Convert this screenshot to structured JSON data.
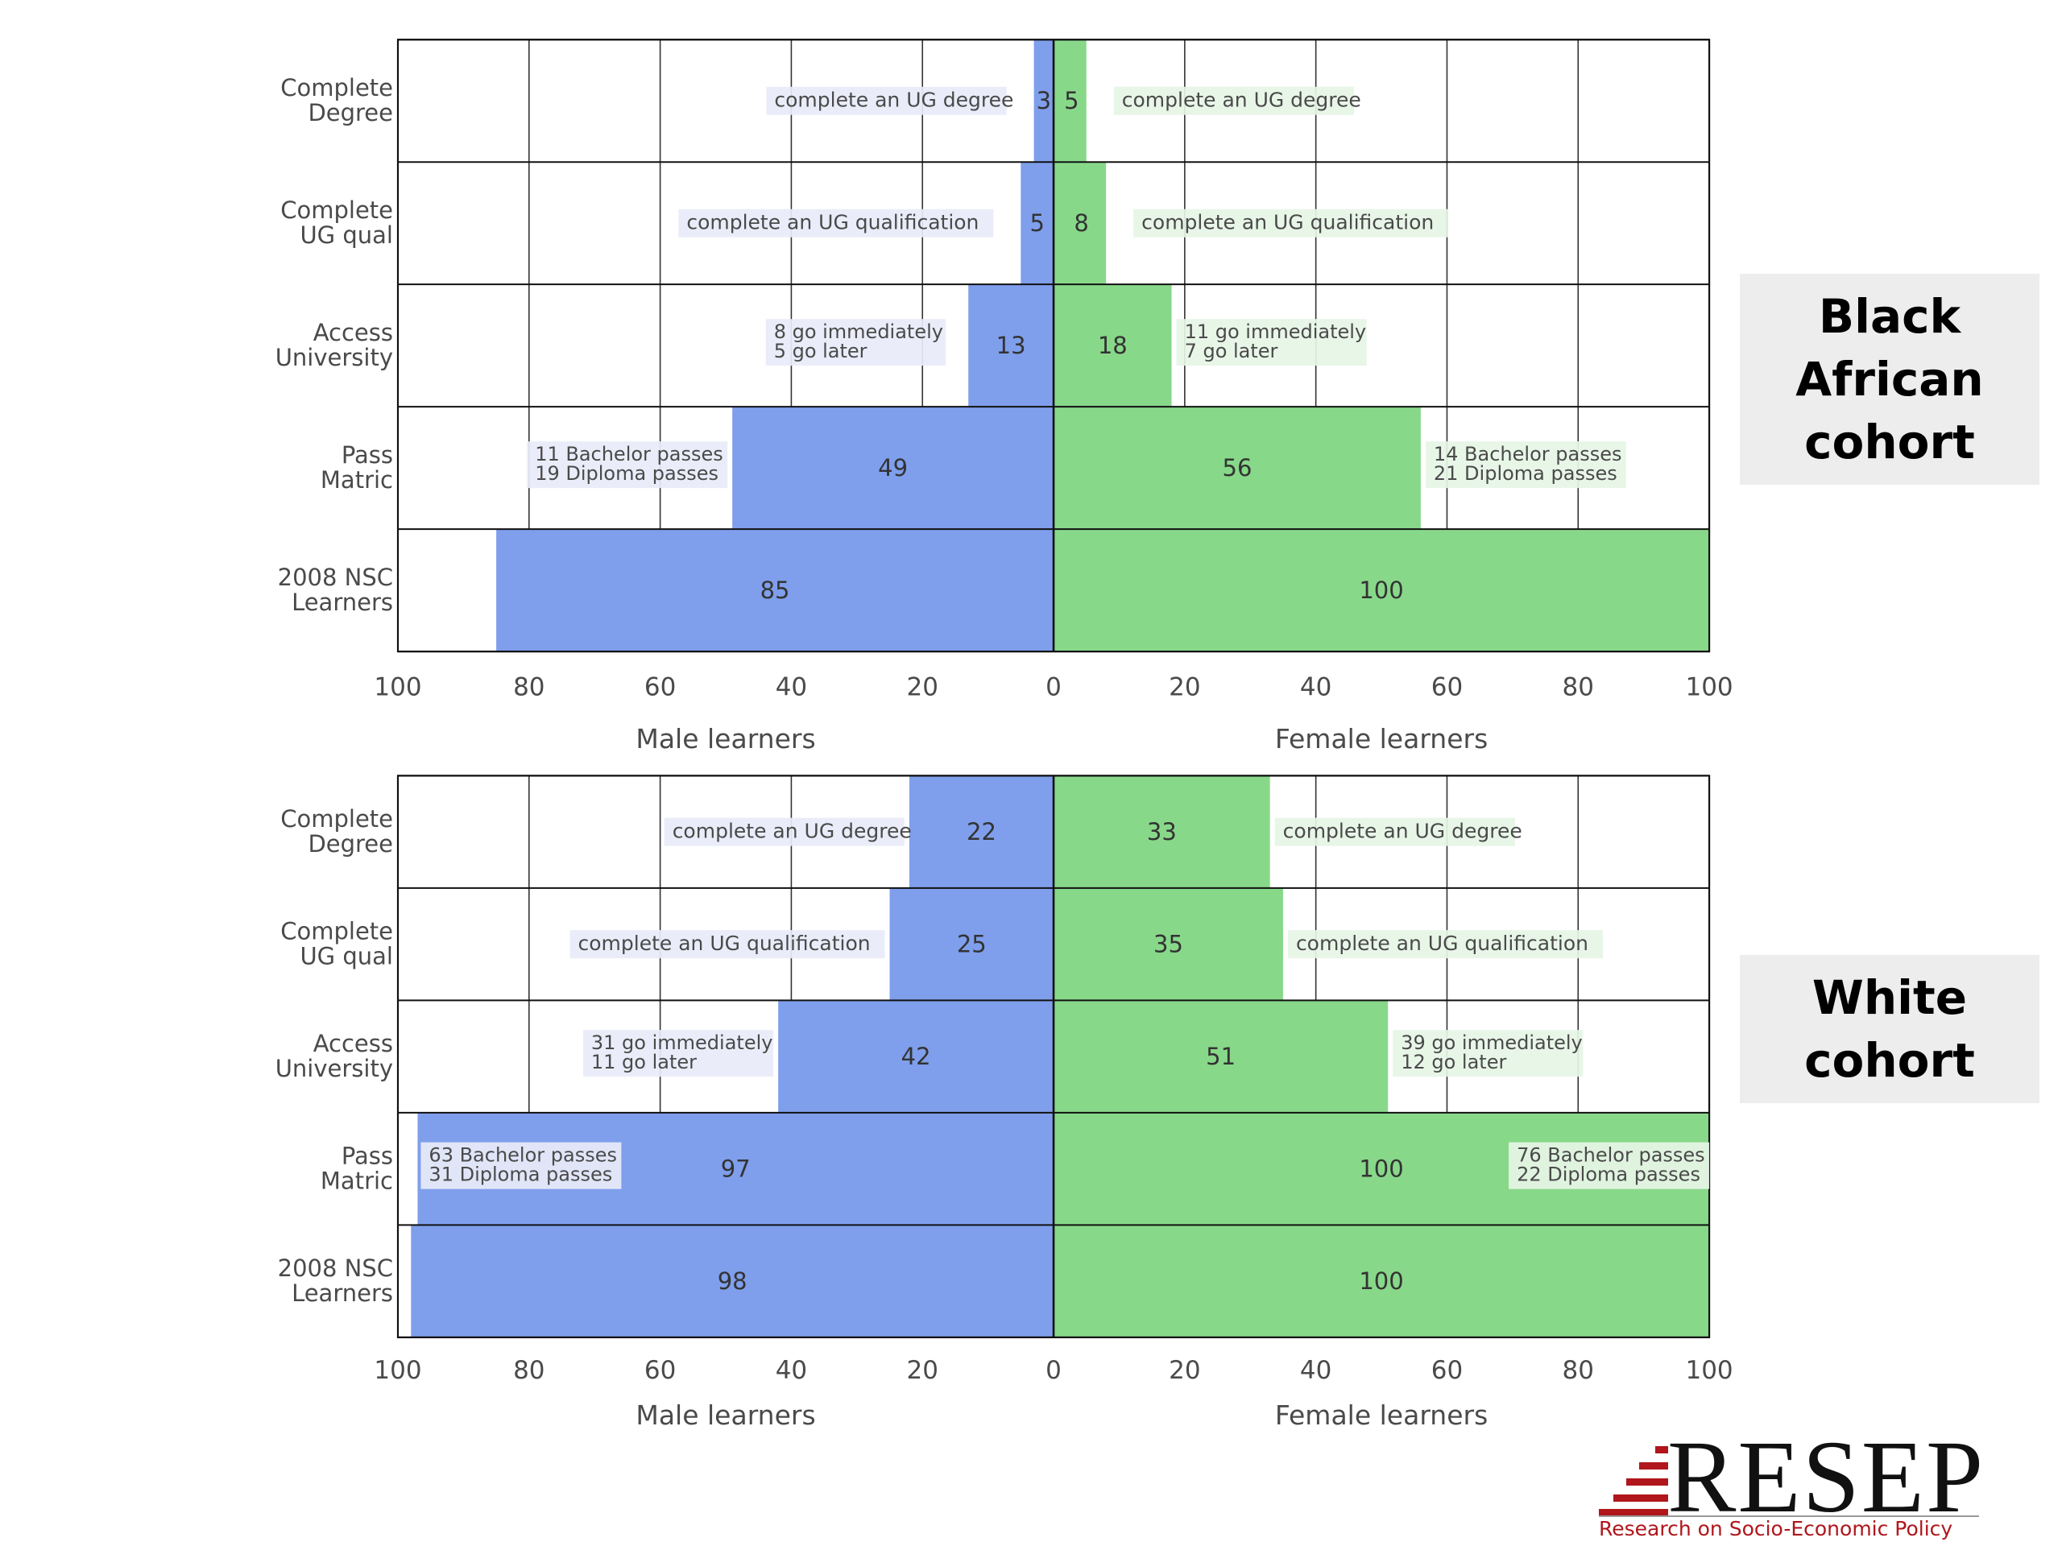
{
  "colors": {
    "male": "#7f9fec",
    "female": "#88d88a",
    "male_label_bg": "#e8ecf8",
    "female_label_bg": "#e6f5e6",
    "brand_red": "#b0161c"
  },
  "chart_data": [
    {
      "type": "bar",
      "cohort_label": "Black African cohort",
      "categories": [
        "Complete Degree",
        "Complete UG qual",
        "Access University",
        "Pass Matric",
        "2008 NSC Learners"
      ],
      "series": [
        {
          "name": "Male learners",
          "values": [
            3,
            5,
            13,
            49,
            85
          ]
        },
        {
          "name": "Female learners",
          "values": [
            5,
            8,
            18,
            56,
            100
          ]
        }
      ],
      "annotations_male": [
        "complete an UG degree",
        "complete an UG qualification",
        "8 go immediately\n5 go later",
        "11 Bachelor passes\n19 Diploma passes",
        ""
      ],
      "annotations_female": [
        "complete an UG degree",
        "complete an UG qualification",
        "11 go immediately\n7 go later",
        "14 Bachelor passes\n21 Diploma passes",
        ""
      ],
      "xlabel_left": "Male learners",
      "xlabel_right": "Female learners",
      "xticks": [
        "100",
        "80",
        "60",
        "40",
        "20",
        "0",
        "20",
        "40",
        "60",
        "80",
        "100"
      ],
      "xlim": [
        -100,
        100
      ],
      "grid": true
    },
    {
      "type": "bar",
      "cohort_label": "White cohort",
      "categories": [
        "Complete Degree",
        "Complete UG qual",
        "Access University",
        "Pass Matric",
        "2008 NSC Learners"
      ],
      "series": [
        {
          "name": "Male learners",
          "values": [
            22,
            25,
            42,
            97,
            98
          ]
        },
        {
          "name": "Female learners",
          "values": [
            33,
            35,
            51,
            100,
            100
          ]
        }
      ],
      "annotations_male": [
        "complete an UG degree",
        "complete an UG qualification",
        "31 go immediately\n11 go later",
        "63 Bachelor passes\n31 Diploma passes",
        ""
      ],
      "annotations_female": [
        "complete an UG degree",
        "complete an UG qualification",
        "39 go immediately\n12 go later",
        "76 Bachelor passes\n22 Diploma passes",
        ""
      ],
      "xlabel_left": "Male learners",
      "xlabel_right": "Female learners",
      "xticks": [
        "100",
        "80",
        "60",
        "40",
        "20",
        "0",
        "20",
        "40",
        "60",
        "80",
        "100"
      ],
      "xlim": [
        -100,
        100
      ],
      "grid": true
    }
  ],
  "category_lines": {
    "Complete Degree": [
      "Complete",
      "Degree"
    ],
    "Complete UG qual": [
      "Complete",
      "UG qual"
    ],
    "Access University": [
      "Access",
      "University"
    ],
    "Pass Matric": [
      "Pass",
      "Matric"
    ],
    "2008 NSC Learners": [
      "2008 NSC",
      "Learners"
    ]
  },
  "logo": {
    "word": "RESEP",
    "tagline": "Research on Socio-Economic Policy"
  }
}
